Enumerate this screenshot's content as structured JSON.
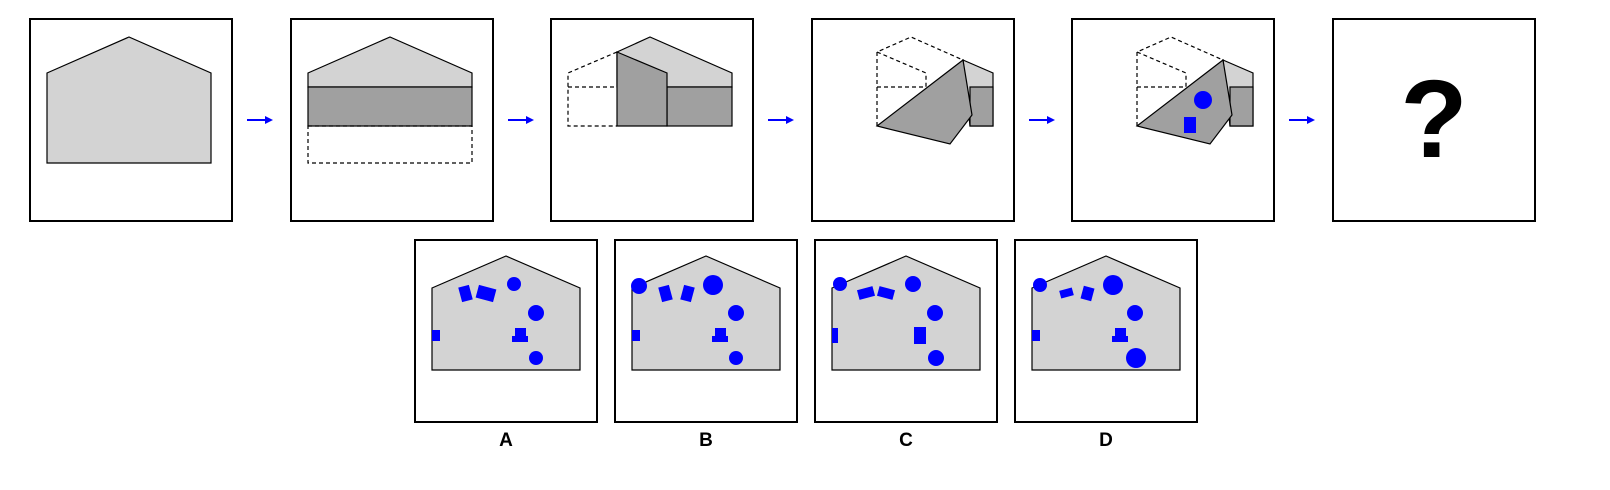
{
  "sequence": {
    "unknown_symbol": "?"
  },
  "options": {
    "labels": [
      "A",
      "B",
      "C",
      "D"
    ]
  },
  "colors": {
    "paper": "#d3d3d3",
    "folded": "#a0a0a0",
    "hole": "#0000ff",
    "arrow": "#0000ff",
    "outline": "#000000"
  },
  "icons": {
    "arrow": "arrow-right-icon",
    "circle_hole": "circle-hole-icon",
    "square_hole": "square-hole-icon"
  }
}
